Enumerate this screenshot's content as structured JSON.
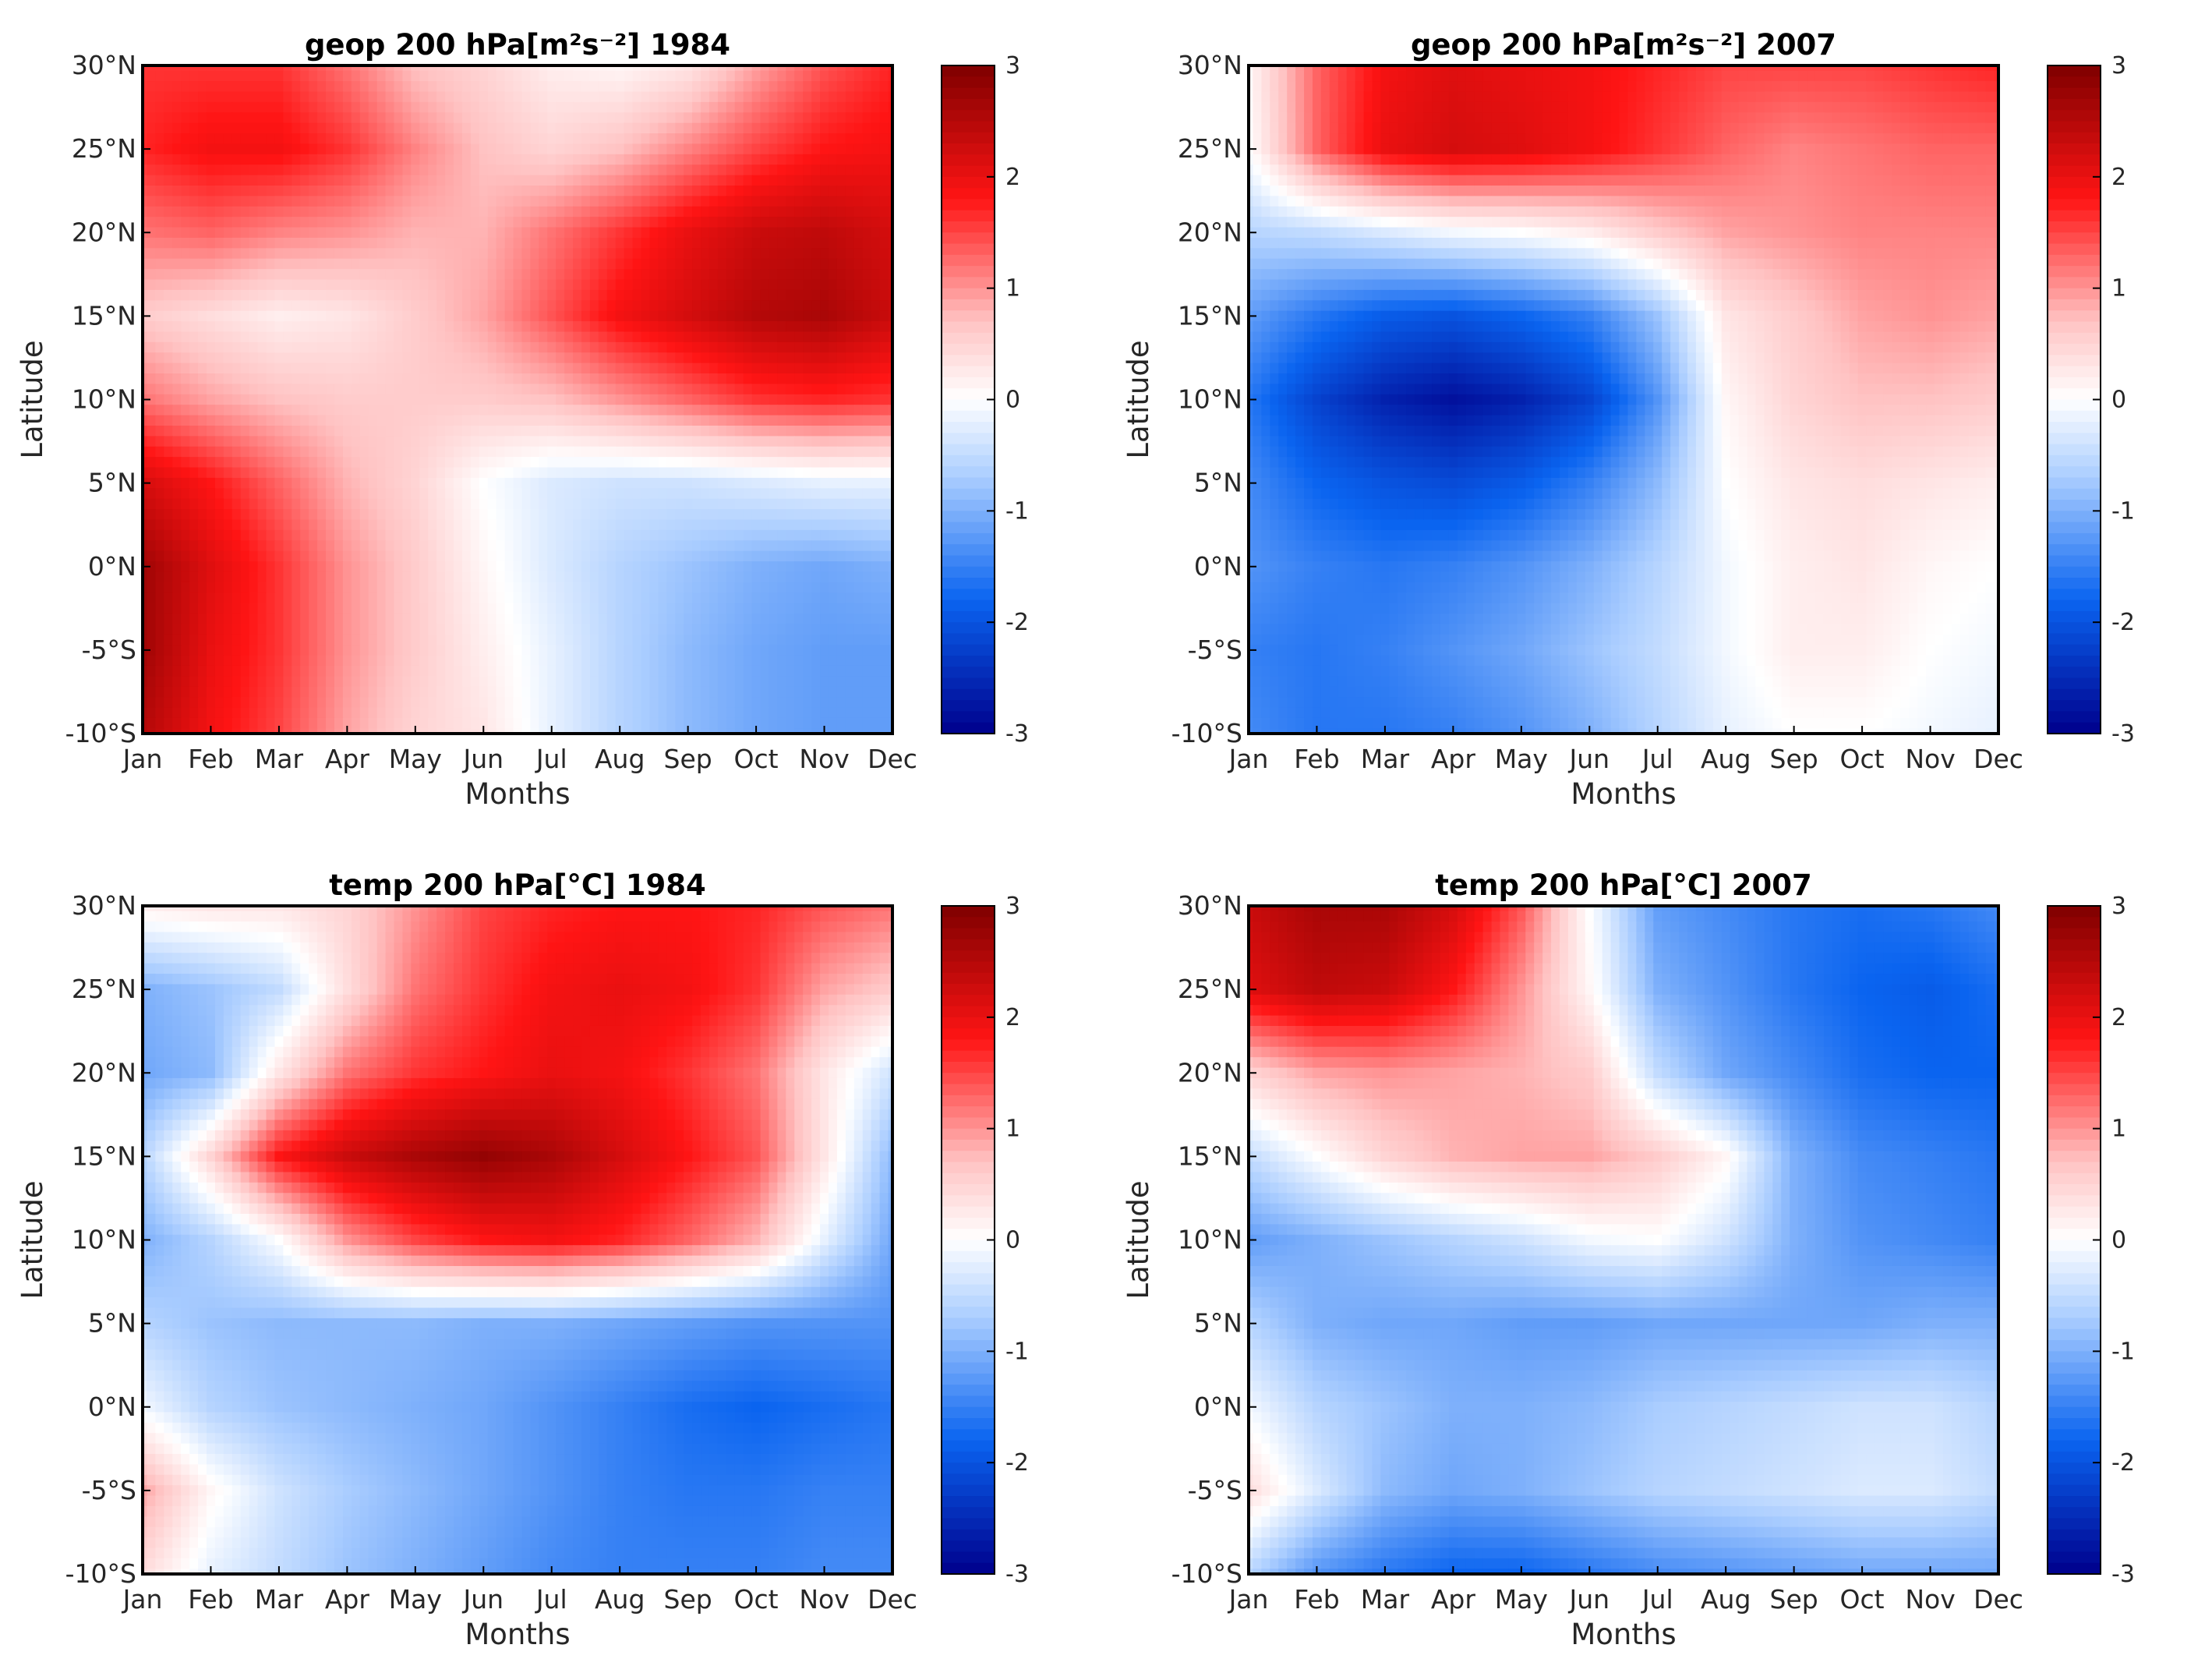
{
  "colors": {
    "neg_max": "#00008c",
    "neg_mid": "#0a64f0",
    "neg_light": "#aacdff",
    "zero": "#ffffff",
    "pos_light": "#ffc3c3",
    "pos_mid": "#ff1414",
    "pos_max": "#7f0000"
  },
  "chart_data": [
    {
      "type": "heatmap",
      "title": "geop 200 hPa[m²s⁻²] 1984",
      "xlabel": "Months",
      "ylabel": "Latitude",
      "x": [
        "Jan",
        "Feb",
        "Mar",
        "Apr",
        "May",
        "Jun",
        "Jul",
        "Aug",
        "Sep",
        "Oct",
        "Nov",
        "Dec"
      ],
      "y_ticks": [
        "30°N",
        "25°N",
        "20°N",
        "15°N",
        "10°N",
        "5°N",
        "0°N",
        "-5°S",
        "-10°S"
      ],
      "y": [
        30,
        25,
        20,
        15,
        10,
        5,
        0,
        -5,
        -10
      ],
      "z": [
        [
          1.6,
          1.6,
          1.6,
          1.2,
          0.7,
          0.5,
          0.2,
          0.1,
          0.3,
          0.9,
          1.4,
          1.7
        ],
        [
          1.7,
          1.9,
          1.9,
          1.6,
          1.1,
          0.7,
          0.5,
          0.7,
          1.1,
          1.5,
          1.8,
          1.9
        ],
        [
          1.2,
          1.3,
          1.1,
          1.0,
          0.8,
          0.8,
          1.2,
          1.6,
          2.0,
          2.3,
          2.4,
          2.2
        ],
        [
          0.6,
          0.4,
          0.2,
          0.3,
          0.6,
          0.9,
          1.4,
          1.9,
          2.2,
          2.5,
          2.6,
          2.3
        ],
        [
          1.2,
          0.9,
          0.7,
          0.6,
          0.6,
          0.6,
          0.7,
          1.0,
          1.3,
          1.6,
          1.7,
          1.6
        ],
        [
          2.2,
          1.8,
          1.3,
          0.8,
          0.5,
          0.0,
          -0.3,
          -0.4,
          -0.4,
          -0.3,
          -0.2,
          -0.2
        ],
        [
          2.7,
          2.1,
          1.6,
          1.0,
          0.6,
          0.1,
          -0.3,
          -0.6,
          -0.8,
          -1.0,
          -1.1,
          -1.0
        ],
        [
          2.7,
          2.0,
          1.6,
          1.0,
          0.6,
          0.2,
          -0.2,
          -0.6,
          -0.9,
          -1.1,
          -1.2,
          -1.2
        ],
        [
          2.5,
          1.9,
          1.5,
          0.9,
          0.5,
          0.3,
          -0.2,
          -0.6,
          -0.9,
          -1.1,
          -1.2,
          -1.2
        ]
      ],
      "clim": [
        -3,
        3
      ],
      "colorbar_ticks": [
        "3",
        "2",
        "1",
        "0",
        "-1",
        "-2",
        "-3"
      ]
    },
    {
      "type": "heatmap",
      "title": "geop 200 hPa[m²s⁻²] 2007",
      "xlabel": "Months",
      "ylabel": "Latitude",
      "x": [
        "Jan",
        "Feb",
        "Mar",
        "Apr",
        "May",
        "Jun",
        "Jul",
        "Aug",
        "Sep",
        "Oct",
        "Nov",
        "Dec"
      ],
      "y_ticks": [
        "30°N",
        "25°N",
        "20°N",
        "15°N",
        "10°N",
        "5°N",
        "0°N",
        "-5°S",
        "-10°S"
      ],
      "y": [
        30,
        25,
        20,
        15,
        10,
        5,
        0,
        -5,
        -10
      ],
      "z": [
        [
          0.1,
          1.3,
          1.9,
          2.1,
          2.0,
          1.9,
          1.7,
          1.5,
          1.5,
          1.5,
          1.6,
          1.7
        ],
        [
          0.0,
          1.3,
          2.0,
          2.2,
          2.1,
          1.9,
          1.6,
          1.3,
          1.1,
          1.2,
          1.3,
          1.3
        ],
        [
          -0.6,
          -0.5,
          -0.3,
          -0.1,
          0.0,
          0.2,
          0.6,
          0.9,
          1.0,
          1.1,
          1.1,
          1.1
        ],
        [
          -1.2,
          -1.6,
          -1.9,
          -2.0,
          -1.8,
          -1.5,
          -0.8,
          0.3,
          0.6,
          0.9,
          1.0,
          0.9
        ],
        [
          -1.6,
          -2.2,
          -2.6,
          -2.8,
          -2.6,
          -2.2,
          -1.3,
          0.1,
          0.5,
          0.7,
          0.7,
          0.6
        ],
        [
          -1.4,
          -1.8,
          -2.0,
          -2.1,
          -1.9,
          -1.5,
          -0.9,
          0.0,
          0.3,
          0.4,
          0.3,
          0.2
        ],
        [
          -1.3,
          -1.5,
          -1.6,
          -1.5,
          -1.3,
          -1.0,
          -0.6,
          -0.1,
          0.2,
          0.3,
          0.1,
          0.0
        ],
        [
          -1.5,
          -1.6,
          -1.5,
          -1.3,
          -1.1,
          -0.8,
          -0.5,
          -0.1,
          0.2,
          0.2,
          0.0,
          -0.1
        ],
        [
          -1.4,
          -1.6,
          -1.6,
          -1.5,
          -1.3,
          -1.0,
          -0.6,
          -0.2,
          0.0,
          0.0,
          -0.1,
          -0.2
        ]
      ],
      "clim": [
        -3,
        3
      ],
      "colorbar_ticks": [
        "3",
        "2",
        "1",
        "0",
        "-1",
        "-2",
        "-3"
      ]
    },
    {
      "type": "heatmap",
      "title": "temp 200 hPa[°C] 1984",
      "xlabel": "Months",
      "ylabel": "Latitude",
      "x": [
        "Jan",
        "Feb",
        "Mar",
        "Apr",
        "May",
        "Jun",
        "Jul",
        "Aug",
        "Sep",
        "Oct",
        "Nov",
        "Dec"
      ],
      "y_ticks": [
        "30°N",
        "25°N",
        "20°N",
        "15°N",
        "10°N",
        "5°N",
        "0°N",
        "-5°S",
        "-10°S"
      ],
      "y": [
        30,
        25,
        20,
        15,
        10,
        5,
        0,
        -5,
        -10
      ],
      "z": [
        [
          0.2,
          0.3,
          0.3,
          0.5,
          1.0,
          1.5,
          1.7,
          1.8,
          1.8,
          1.7,
          1.4,
          1.2
        ],
        [
          -1.0,
          -0.8,
          -0.5,
          0.4,
          1.2,
          1.6,
          1.9,
          2.0,
          1.9,
          1.6,
          0.9,
          0.6
        ],
        [
          -1.1,
          -0.9,
          0.3,
          1.2,
          1.6,
          1.8,
          2.0,
          1.9,
          1.6,
          1.2,
          0.3,
          -0.4
        ],
        [
          -0.6,
          0.5,
          1.8,
          2.3,
          2.6,
          2.8,
          2.6,
          2.2,
          1.8,
          1.4,
          0.3,
          -0.9
        ],
        [
          -1.0,
          -0.6,
          0.0,
          1.0,
          1.5,
          1.8,
          1.9,
          1.7,
          1.3,
          0.8,
          -0.2,
          -1.1
        ],
        [
          -0.6,
          -0.8,
          -0.9,
          -0.9,
          -0.9,
          -1.0,
          -1.0,
          -1.1,
          -1.2,
          -1.3,
          -1.3,
          -1.3
        ],
        [
          -0.1,
          -0.6,
          -0.8,
          -0.9,
          -1.0,
          -1.1,
          -1.3,
          -1.5,
          -1.7,
          -1.8,
          -1.7,
          -1.6
        ],
        [
          0.9,
          0.1,
          -0.4,
          -0.7,
          -0.9,
          -1.1,
          -1.3,
          -1.5,
          -1.6,
          -1.6,
          -1.5,
          -1.5
        ],
        [
          0.4,
          -0.2,
          -0.5,
          -0.8,
          -1.0,
          -1.2,
          -1.4,
          -1.5,
          -1.5,
          -1.5,
          -1.4,
          -1.4
        ]
      ],
      "clim": [
        -3,
        3
      ],
      "colorbar_ticks": [
        "3",
        "2",
        "1",
        "0",
        "-1",
        "-2",
        "-3"
      ]
    },
    {
      "type": "heatmap",
      "title": "temp 200 hPa[°C] 2007",
      "xlabel": "Months",
      "ylabel": "Latitude",
      "x": [
        "Jan",
        "Feb",
        "Mar",
        "Apr",
        "May",
        "Jun",
        "Jul",
        "Aug",
        "Sep",
        "Oct",
        "Nov",
        "Dec"
      ],
      "y_ticks": [
        "30°N",
        "25°N",
        "20°N",
        "15°N",
        "10°N",
        "5°N",
        "0°N",
        "-5°S",
        "-10°S"
      ],
      "y": [
        30,
        25,
        20,
        15,
        10,
        5,
        0,
        -5,
        -10
      ],
      "z": [
        [
          2.3,
          2.6,
          2.6,
          2.2,
          1.4,
          0.0,
          -1.2,
          -1.4,
          -1.6,
          -1.7,
          -1.6,
          -1.4
        ],
        [
          2.1,
          2.4,
          2.3,
          1.8,
          1.0,
          0.1,
          -1.0,
          -1.3,
          -1.6,
          -1.8,
          -1.9,
          -1.7
        ],
        [
          0.5,
          0.9,
          1.0,
          0.9,
          0.8,
          0.6,
          -0.5,
          -1.1,
          -1.4,
          -1.7,
          -1.8,
          -1.8
        ],
        [
          -0.5,
          0.0,
          0.5,
          0.8,
          0.9,
          0.9,
          0.6,
          0.1,
          -1.0,
          -1.4,
          -1.5,
          -1.6
        ],
        [
          -1.2,
          -1.0,
          -0.8,
          -0.6,
          -0.4,
          -0.1,
          0.0,
          -0.4,
          -1.0,
          -1.3,
          -1.4,
          -1.5
        ],
        [
          -0.6,
          -1.0,
          -1.1,
          -1.1,
          -1.2,
          -1.2,
          -1.1,
          -1.1,
          -1.1,
          -1.1,
          -1.0,
          -1.0
        ],
        [
          -0.1,
          -0.6,
          -0.8,
          -1.0,
          -1.0,
          -0.9,
          -0.7,
          -0.6,
          -0.5,
          -0.4,
          -0.4,
          -0.6
        ],
        [
          0.4,
          -0.3,
          -0.9,
          -1.1,
          -1.0,
          -0.8,
          -0.6,
          -0.5,
          -0.4,
          -0.3,
          -0.3,
          -0.5
        ],
        [
          -0.6,
          -1.3,
          -1.6,
          -1.8,
          -1.8,
          -1.6,
          -1.4,
          -1.3,
          -1.2,
          -1.1,
          -1.1,
          -1.1
        ]
      ],
      "clim": [
        -3,
        3
      ],
      "colorbar_ticks": [
        "3",
        "2",
        "1",
        "0",
        "-1",
        "-2",
        "-3"
      ]
    }
  ]
}
